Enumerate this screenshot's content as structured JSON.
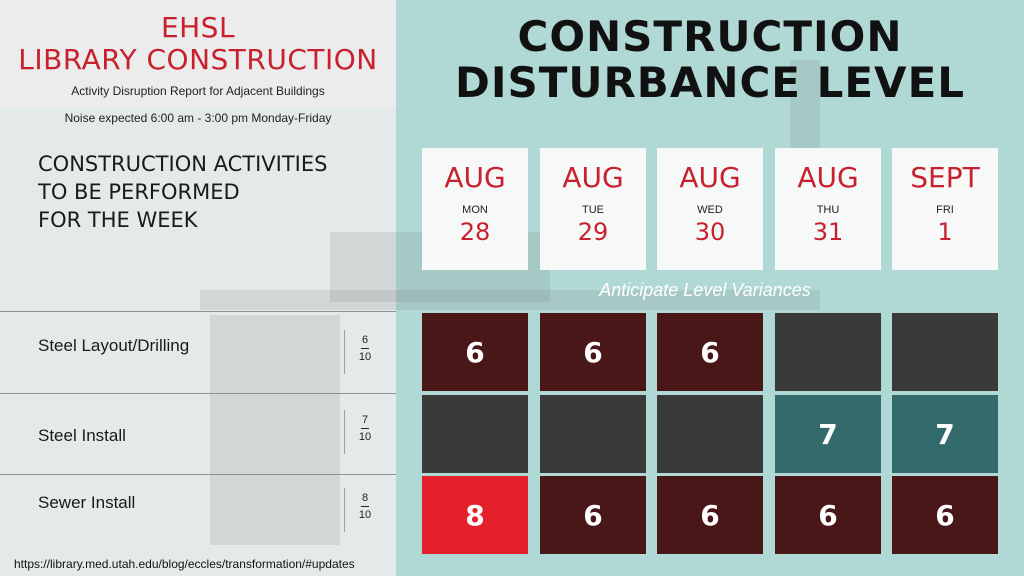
{
  "header": {
    "org_line": "EHSL",
    "project_line": "LIBRARY CONSTRUCTION",
    "subtitle": "Activity Disruption Report for Adjacent Buildings",
    "noise_note": "Noise expected 6:00 am - 3:00 pm Monday-Friday"
  },
  "activities_heading": [
    "CONSTRUCTION ACTIVITIES",
    "TO BE PERFORMED",
    "FOR THE WEEK"
  ],
  "main_title": [
    "CONSTRUCTION",
    "DISTURBANCE LEVEL"
  ],
  "days": [
    {
      "month": "AUG",
      "weekday": "MON",
      "date": "28"
    },
    {
      "month": "AUG",
      "weekday": "TUE",
      "date": "29"
    },
    {
      "month": "AUG",
      "weekday": "WED",
      "date": "30"
    },
    {
      "month": "AUG",
      "weekday": "THU",
      "date": "31"
    },
    {
      "month": "SEPT",
      "weekday": "FRI",
      "date": "1"
    }
  ],
  "variance_note": "Anticipate Level Variances",
  "activities": [
    {
      "name": "Steel Layout/Drilling",
      "level_num": "6",
      "level_den": "10",
      "cells": [
        {
          "v": "6",
          "c": "#4a1718"
        },
        {
          "v": "6",
          "c": "#4a1718"
        },
        {
          "v": "6",
          "c": "#4a1718"
        },
        {
          "v": "",
          "c": "#3a3a3b"
        },
        {
          "v": "",
          "c": "#3a3a3b"
        }
      ]
    },
    {
      "name": "Steel Install",
      "level_num": "7",
      "level_den": "10",
      "cells": [
        {
          "v": "",
          "c": "#3a3a3b"
        },
        {
          "v": "",
          "c": "#3a3a3b"
        },
        {
          "v": "",
          "c": "#3a3a3b"
        },
        {
          "v": "7",
          "c": "#336a6b"
        },
        {
          "v": "7",
          "c": "#336a6b"
        }
      ]
    },
    {
      "name": "Sewer Install",
      "level_num": "8",
      "level_den": "10",
      "cells": [
        {
          "v": "8",
          "c": "#e4212b"
        },
        {
          "v": "6",
          "c": "#4a1718"
        },
        {
          "v": "6",
          "c": "#4a1718"
        },
        {
          "v": "6",
          "c": "#4a1718"
        },
        {
          "v": "6",
          "c": "#4a1718"
        }
      ]
    }
  ],
  "source_url": "https://library.med.utah.edu/blog/eccles/transformation/#updates"
}
